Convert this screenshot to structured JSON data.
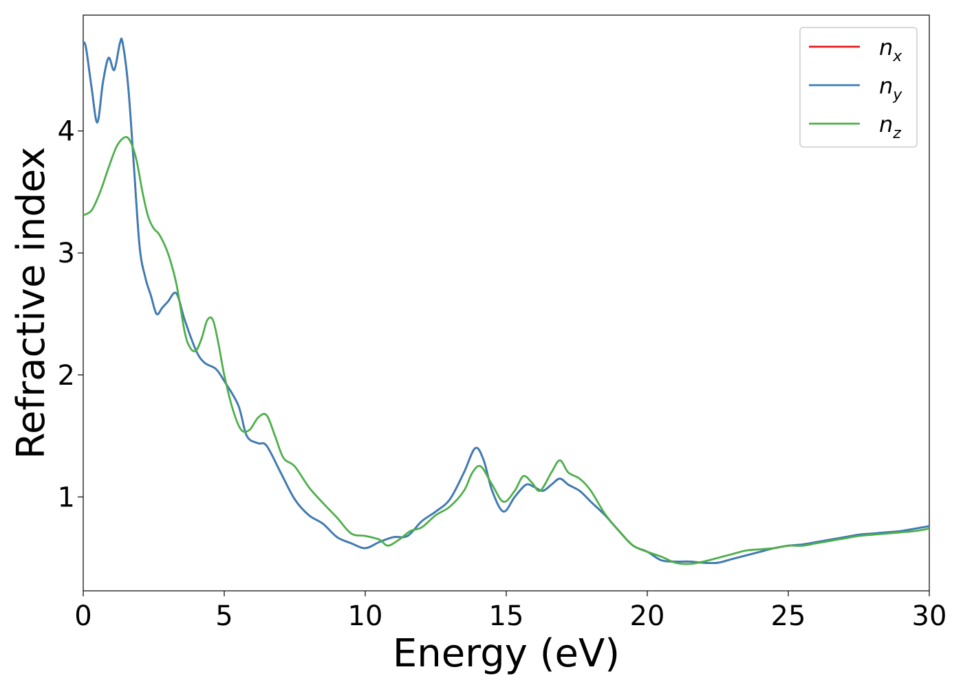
{
  "chart_data": {
    "type": "line",
    "title": "",
    "xlabel": "Energy (eV)",
    "ylabel": "Refractive index",
    "xlim": [
      0,
      30
    ],
    "ylim": [
      0.23,
      4.95
    ],
    "xticks": [
      0,
      5,
      10,
      15,
      20,
      25,
      30
    ],
    "xtick_labels": [
      "0",
      "5",
      "10",
      "15",
      "20",
      "25",
      "30"
    ],
    "yticks": [
      1,
      2,
      3,
      4
    ],
    "ytick_labels": [
      "1",
      "2",
      "3",
      "4"
    ],
    "grid": false,
    "legend_position": "top-right",
    "series": [
      {
        "name": "n_x",
        "label_base": "n",
        "label_sub": "x",
        "color": "#e41a1c",
        "x": [
          0,
          0.1,
          0.3,
          0.5,
          0.7,
          0.9,
          1.1,
          1.3,
          1.4,
          1.6,
          1.8,
          2.0,
          2.2,
          2.4,
          2.6,
          2.8,
          3.0,
          3.3,
          3.6,
          4.0,
          4.3,
          4.7,
          5.0,
          5.5,
          5.8,
          6.2,
          6.5,
          7.0,
          7.5,
          8.0,
          8.5,
          9.0,
          9.5,
          10.0,
          10.5,
          11.0,
          11.5,
          12.0,
          12.5,
          13.0,
          13.5,
          13.9,
          14.2,
          14.5,
          14.9,
          15.3,
          15.7,
          16.0,
          16.3,
          16.6,
          16.9,
          17.2,
          17.6,
          18.0,
          18.5,
          19.0,
          19.5,
          20.0,
          20.5,
          21.0,
          21.5,
          22.0,
          22.5,
          23.0,
          23.5,
          24.0,
          24.5,
          25.0,
          25.5,
          26.0,
          26.5,
          27.0,
          27.5,
          28.0,
          28.5,
          29.0,
          29.5,
          30.0
        ],
        "y": [
          4.73,
          4.68,
          4.35,
          4.07,
          4.4,
          4.6,
          4.5,
          4.72,
          4.72,
          4.35,
          3.7,
          3.05,
          2.8,
          2.65,
          2.5,
          2.55,
          2.6,
          2.67,
          2.45,
          2.2,
          2.1,
          2.05,
          1.95,
          1.75,
          1.5,
          1.44,
          1.42,
          1.2,
          0.98,
          0.85,
          0.78,
          0.67,
          0.62,
          0.58,
          0.63,
          0.67,
          0.68,
          0.8,
          0.88,
          0.98,
          1.2,
          1.4,
          1.3,
          1.05,
          0.88,
          1.0,
          1.1,
          1.08,
          1.05,
          1.1,
          1.15,
          1.1,
          1.05,
          0.96,
          0.85,
          0.72,
          0.6,
          0.55,
          0.48,
          0.47,
          0.47,
          0.46,
          0.46,
          0.49,
          0.52,
          0.55,
          0.58,
          0.6,
          0.61,
          0.63,
          0.65,
          0.67,
          0.69,
          0.7,
          0.71,
          0.72,
          0.74,
          0.76
        ]
      },
      {
        "name": "n_y",
        "label_base": "n",
        "label_sub": "y",
        "color": "#377eb8",
        "x": [
          0,
          0.1,
          0.3,
          0.5,
          0.7,
          0.9,
          1.1,
          1.3,
          1.4,
          1.6,
          1.8,
          2.0,
          2.2,
          2.4,
          2.6,
          2.8,
          3.0,
          3.3,
          3.6,
          4.0,
          4.3,
          4.7,
          5.0,
          5.5,
          5.8,
          6.2,
          6.5,
          7.0,
          7.5,
          8.0,
          8.5,
          9.0,
          9.5,
          10.0,
          10.5,
          11.0,
          11.5,
          12.0,
          12.5,
          13.0,
          13.5,
          13.9,
          14.2,
          14.5,
          14.9,
          15.3,
          15.7,
          16.0,
          16.3,
          16.6,
          16.9,
          17.2,
          17.6,
          18.0,
          18.5,
          19.0,
          19.5,
          20.0,
          20.5,
          21.0,
          21.5,
          22.0,
          22.5,
          23.0,
          23.5,
          24.0,
          24.5,
          25.0,
          25.5,
          26.0,
          26.5,
          27.0,
          27.5,
          28.0,
          28.5,
          29.0,
          29.5,
          30.0
        ],
        "y": [
          4.73,
          4.68,
          4.35,
          4.07,
          4.4,
          4.6,
          4.5,
          4.72,
          4.72,
          4.35,
          3.7,
          3.05,
          2.8,
          2.65,
          2.5,
          2.55,
          2.6,
          2.67,
          2.45,
          2.2,
          2.1,
          2.05,
          1.95,
          1.75,
          1.5,
          1.44,
          1.42,
          1.2,
          0.98,
          0.85,
          0.78,
          0.67,
          0.62,
          0.58,
          0.63,
          0.67,
          0.68,
          0.8,
          0.88,
          0.98,
          1.2,
          1.4,
          1.3,
          1.05,
          0.88,
          1.0,
          1.1,
          1.08,
          1.05,
          1.1,
          1.15,
          1.1,
          1.05,
          0.96,
          0.85,
          0.72,
          0.6,
          0.55,
          0.48,
          0.47,
          0.47,
          0.46,
          0.46,
          0.49,
          0.52,
          0.55,
          0.58,
          0.6,
          0.61,
          0.63,
          0.65,
          0.67,
          0.69,
          0.7,
          0.71,
          0.72,
          0.74,
          0.76
        ]
      },
      {
        "name": "n_z",
        "label_base": "n",
        "label_sub": "z",
        "color": "#4daf4a",
        "x": [
          0,
          0.3,
          0.6,
          0.9,
          1.2,
          1.5,
          1.7,
          1.9,
          2.1,
          2.3,
          2.5,
          2.7,
          3.0,
          3.3,
          3.6,
          3.8,
          4.0,
          4.2,
          4.4,
          4.6,
          4.8,
          5.0,
          5.3,
          5.6,
          5.9,
          6.2,
          6.5,
          6.8,
          7.1,
          7.5,
          8.0,
          8.5,
          9.0,
          9.5,
          10.0,
          10.5,
          10.8,
          11.2,
          11.6,
          12.0,
          12.5,
          13.0,
          13.5,
          13.8,
          14.1,
          14.5,
          14.9,
          15.3,
          15.6,
          15.9,
          16.2,
          16.6,
          16.9,
          17.2,
          17.6,
          18.0,
          18.5,
          19.0,
          19.5,
          20.0,
          20.5,
          21.0,
          21.5,
          22.0,
          22.5,
          23.0,
          23.5,
          24.0,
          24.5,
          25.0,
          25.5,
          26.0,
          26.5,
          27.0,
          27.5,
          28.0,
          28.5,
          29.0,
          29.5,
          30.0
        ],
        "y": [
          3.31,
          3.35,
          3.5,
          3.7,
          3.88,
          3.95,
          3.9,
          3.75,
          3.5,
          3.3,
          3.2,
          3.15,
          3.0,
          2.75,
          2.35,
          2.22,
          2.2,
          2.3,
          2.45,
          2.45,
          2.25,
          2.0,
          1.72,
          1.55,
          1.55,
          1.65,
          1.67,
          1.5,
          1.32,
          1.25,
          1.08,
          0.95,
          0.83,
          0.7,
          0.68,
          0.65,
          0.6,
          0.65,
          0.72,
          0.75,
          0.85,
          0.92,
          1.05,
          1.2,
          1.25,
          1.1,
          0.96,
          1.05,
          1.17,
          1.12,
          1.05,
          1.2,
          1.3,
          1.2,
          1.15,
          1.05,
          0.86,
          0.72,
          0.6,
          0.55,
          0.51,
          0.46,
          0.45,
          0.47,
          0.5,
          0.53,
          0.56,
          0.57,
          0.58,
          0.6,
          0.6,
          0.62,
          0.64,
          0.66,
          0.68,
          0.69,
          0.7,
          0.71,
          0.72,
          0.74
        ]
      }
    ]
  }
}
